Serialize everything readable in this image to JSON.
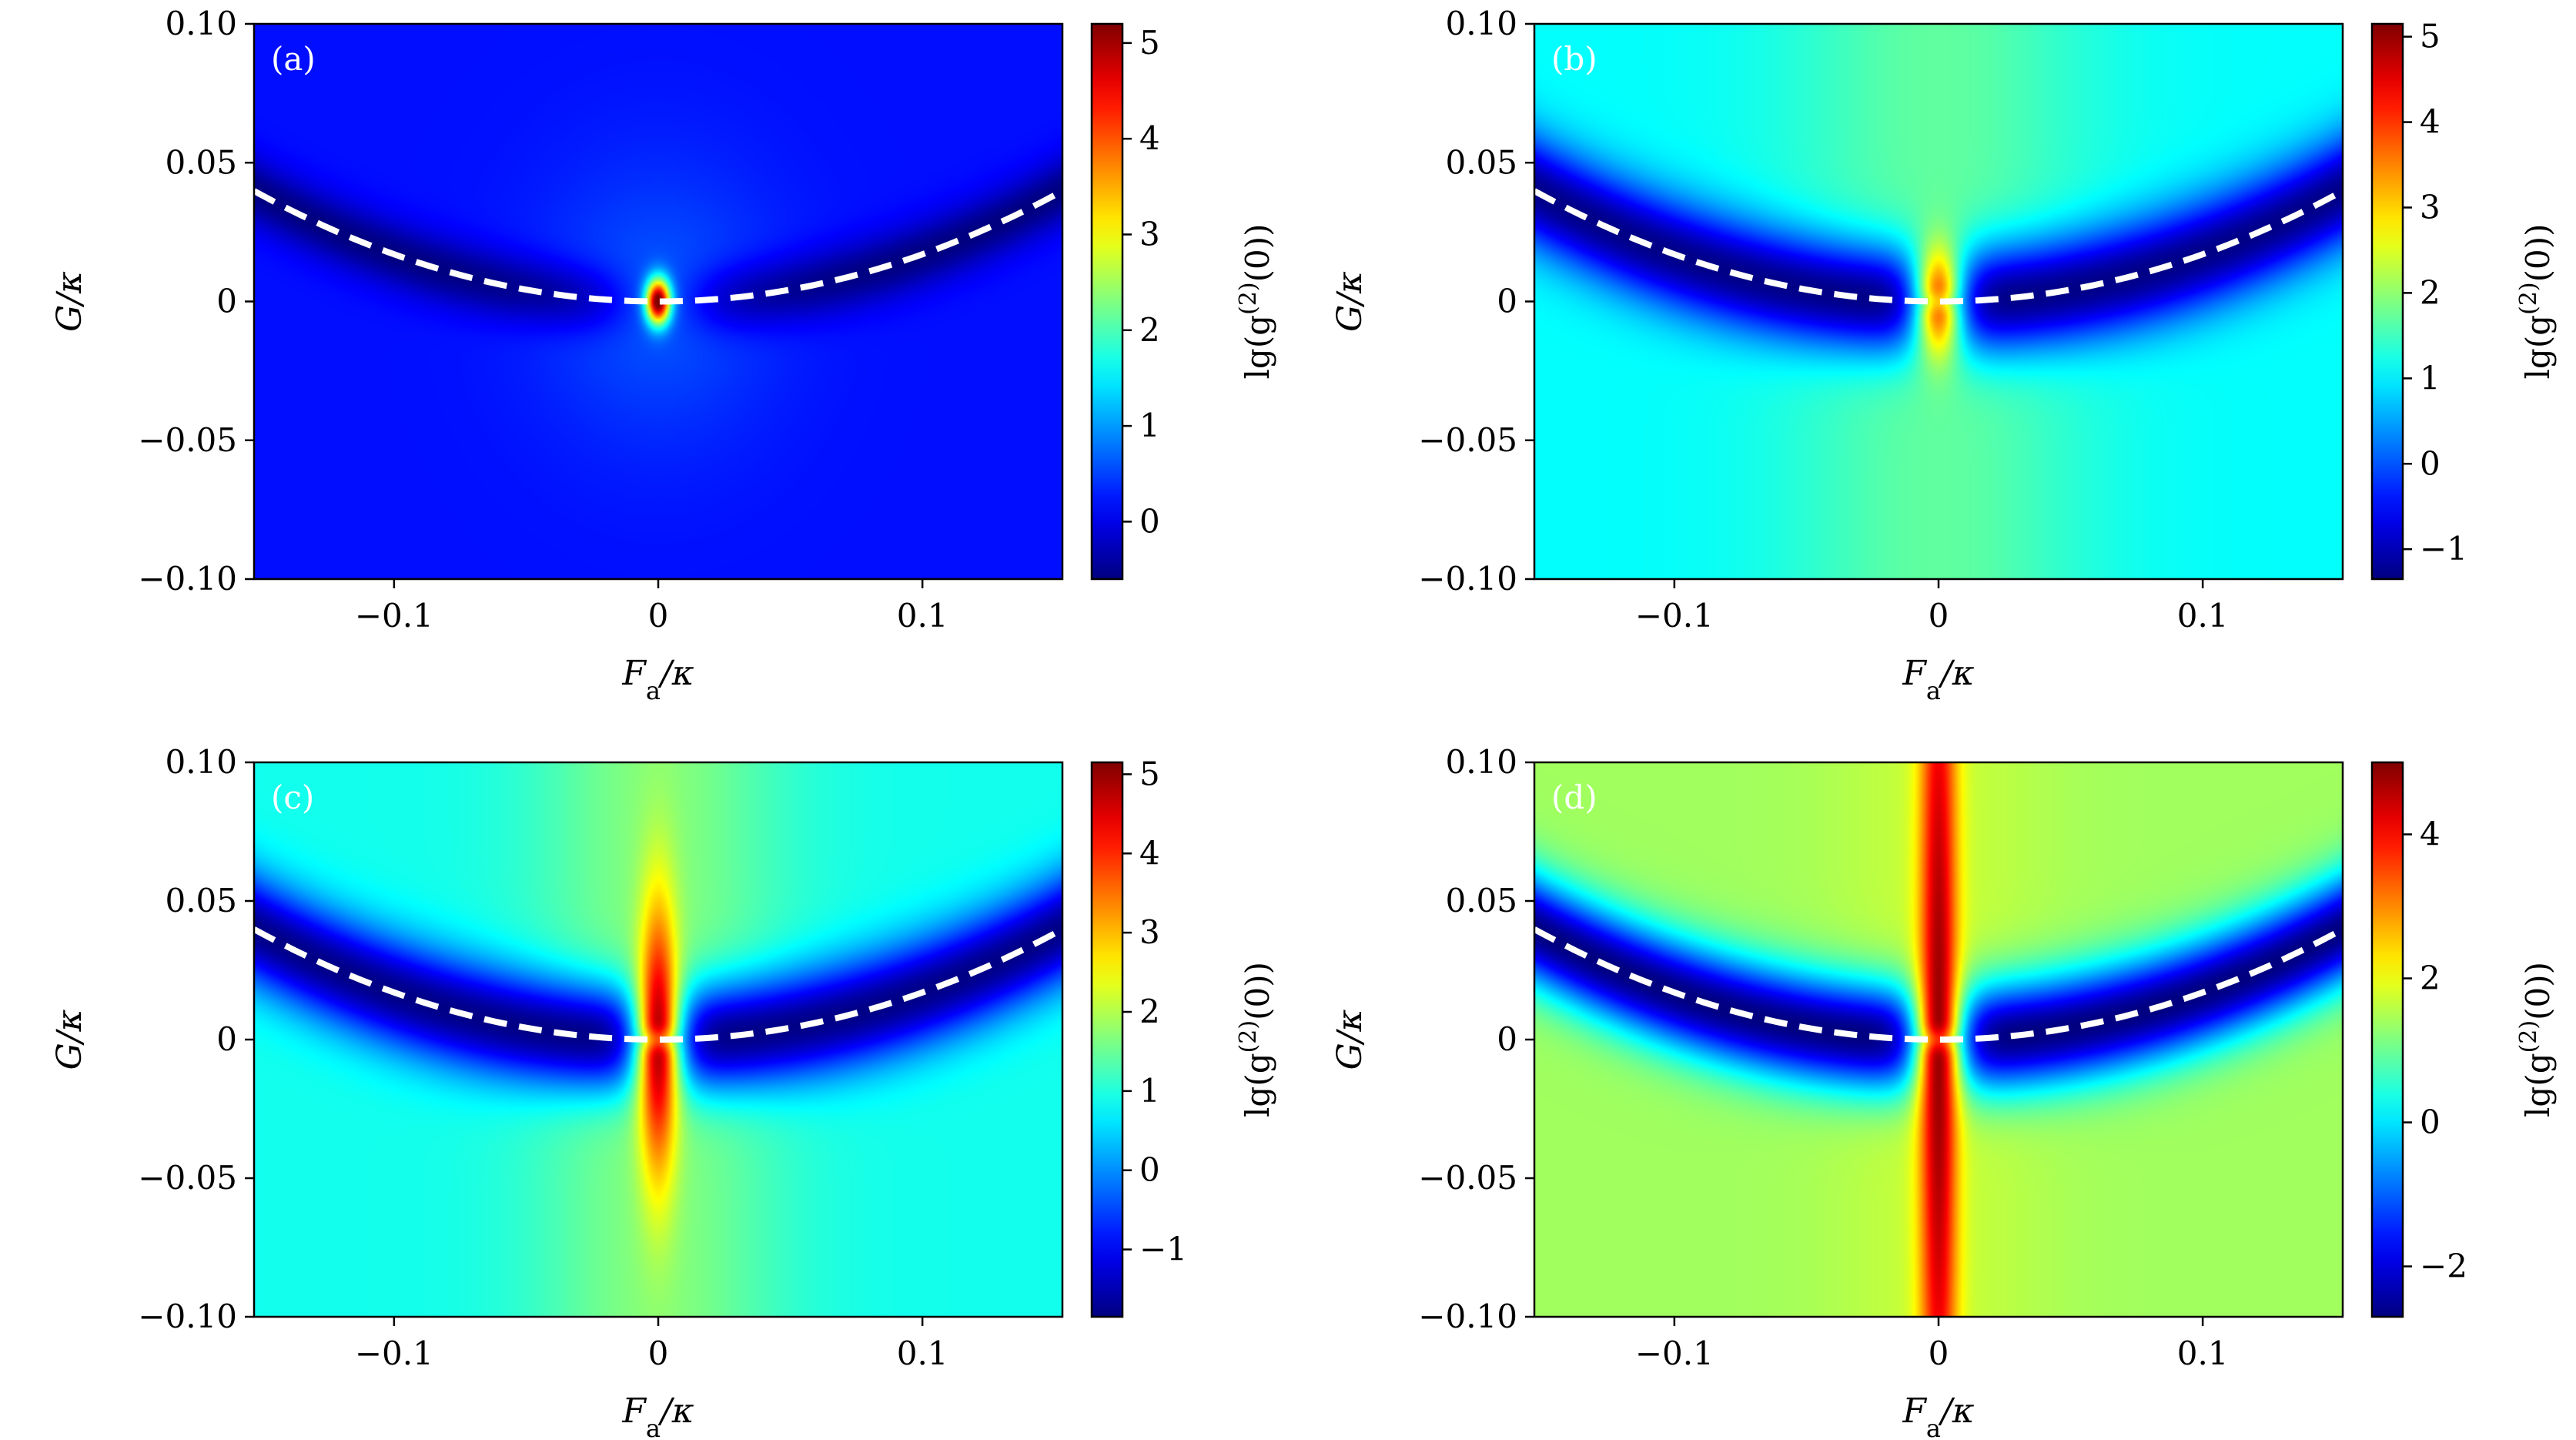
{
  "colors": {
    "dashed_curve": "#ffffff",
    "colormap": "jet",
    "frame": "#000000"
  },
  "chart_data": [
    {
      "type": "heatmap",
      "panel": "(a)",
      "xlabel": "F_a/κ",
      "ylabel": "G/κ",
      "colorbar_label": "lg(g^(2)(0))",
      "xlim": [
        -0.153,
        0.153
      ],
      "ylim": [
        -0.1,
        0.1
      ],
      "xticks": [
        -0.1,
        0,
        0.1
      ],
      "xtick_labels": [
        "−0.1",
        "0",
        "0.1"
      ],
      "yticks": [
        -0.1,
        -0.05,
        0,
        0.05,
        0.1
      ],
      "ytick_labels": [
        "−0.10",
        "−0.05",
        "0",
        "0.05",
        "0.10"
      ],
      "zlim": [
        -0.6,
        5.2
      ],
      "zticks": [
        0,
        1,
        2,
        3,
        4,
        5
      ],
      "ztick_labels": [
        "0",
        "1",
        "2",
        "3",
        "4",
        "5"
      ],
      "peak_value": 5.1,
      "background_value": 0.2,
      "min_valley_value": -0.6,
      "curve": {
        "style": "dashed",
        "color": "white",
        "formula": "G = 1.7·F_a²",
        "points": [
          [
            -0.153,
            0.04
          ],
          [
            -0.1,
            0.017
          ],
          [
            -0.05,
            0.004
          ],
          [
            0,
            0
          ],
          [
            0.05,
            0.004
          ],
          [
            0.1,
            0.017
          ],
          [
            0.153,
            0.04
          ]
        ]
      }
    },
    {
      "type": "heatmap",
      "panel": "(b)",
      "xlabel": "F_a/κ",
      "ylabel": "G/κ",
      "colorbar_label": "lg(g^(2)(0))",
      "xlim": [
        -0.153,
        0.153
      ],
      "ylim": [
        -0.1,
        0.1
      ],
      "xticks": [
        -0.1,
        0,
        0.1
      ],
      "xtick_labels": [
        "−0.1",
        "0",
        "0.1"
      ],
      "yticks": [
        -0.1,
        -0.05,
        0,
        0.05,
        0.1
      ],
      "ytick_labels": [
        "−0.10",
        "−0.05",
        "0",
        "0.05",
        "0.10"
      ],
      "zlim": [
        -1.35,
        5.15
      ],
      "zticks": [
        -1,
        0,
        1,
        2,
        3,
        4,
        5
      ],
      "ztick_labels": [
        "−1",
        "0",
        "1",
        "2",
        "3",
        "4",
        "5"
      ],
      "peak_value": 3.8,
      "background_value": 1.1,
      "min_valley_value": -1.3,
      "curve": {
        "style": "dashed",
        "color": "white",
        "formula": "G = 1.7·F_a²",
        "points": [
          [
            -0.153,
            0.04
          ],
          [
            -0.1,
            0.017
          ],
          [
            -0.05,
            0.004
          ],
          [
            0,
            0
          ],
          [
            0.05,
            0.004
          ],
          [
            0.1,
            0.017
          ],
          [
            0.153,
            0.04
          ]
        ]
      }
    },
    {
      "type": "heatmap",
      "panel": "(c)",
      "xlabel": "F_a/κ",
      "ylabel": "G/κ",
      "colorbar_label": "lg(g^(2)(0))",
      "xlim": [
        -0.153,
        0.153
      ],
      "ylim": [
        -0.1,
        0.1
      ],
      "xticks": [
        -0.1,
        0,
        0.1
      ],
      "xtick_labels": [
        "−0.1",
        "0",
        "0.1"
      ],
      "yticks": [
        -0.1,
        -0.05,
        0,
        0.05,
        0.1
      ],
      "ytick_labels": [
        "−0.10",
        "−0.05",
        "0",
        "0.05",
        "0.10"
      ],
      "zlim": [
        -1.85,
        5.15
      ],
      "zticks": [
        -1,
        0,
        1,
        2,
        3,
        4,
        5
      ],
      "ztick_labels": [
        "−1",
        "0",
        "1",
        "2",
        "3",
        "4",
        "5"
      ],
      "peak_value": 4.8,
      "background_value": 0.9,
      "min_valley_value": -1.8,
      "curve": {
        "style": "dashed",
        "color": "white",
        "formula": "G = 1.7·F_a²",
        "points": [
          [
            -0.153,
            0.04
          ],
          [
            -0.1,
            0.017
          ],
          [
            -0.05,
            0.004
          ],
          [
            0,
            0
          ],
          [
            0.05,
            0.004
          ],
          [
            0.1,
            0.017
          ],
          [
            0.153,
            0.04
          ]
        ]
      }
    },
    {
      "type": "heatmap",
      "panel": "(d)",
      "xlabel": "F_a/κ",
      "ylabel": "G/κ",
      "colorbar_label": "lg(g^(2)(0))",
      "xlim": [
        -0.153,
        0.153
      ],
      "ylim": [
        -0.1,
        0.1
      ],
      "xticks": [
        -0.1,
        0,
        0.1
      ],
      "xtick_labels": [
        "−0.1",
        "0",
        "0.1"
      ],
      "yticks": [
        -0.1,
        -0.05,
        0,
        0.05,
        0.1
      ],
      "ytick_labels": [
        "−0.10",
        "−0.05",
        "0",
        "0.05",
        "0.10"
      ],
      "zlim": [
        -2.7,
        5.0
      ],
      "zticks": [
        -2,
        0,
        2,
        4
      ],
      "ztick_labels": [
        "−2",
        "0",
        "2",
        "4"
      ],
      "peak_value": 4.8,
      "background_value": 1.4,
      "min_valley_value": -2.7,
      "curve": {
        "style": "dashed",
        "color": "white",
        "formula": "G = 1.7·F_a²",
        "points": [
          [
            -0.153,
            0.04
          ],
          [
            -0.1,
            0.017
          ],
          [
            -0.05,
            0.004
          ],
          [
            0,
            0
          ],
          [
            0.05,
            0.004
          ],
          [
            0.1,
            0.017
          ],
          [
            0.153,
            0.04
          ]
        ]
      }
    }
  ]
}
